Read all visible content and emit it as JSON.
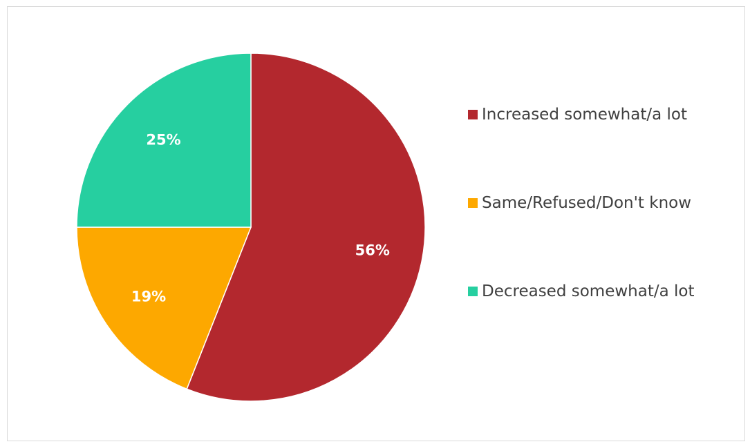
{
  "chart_data": {
    "type": "pie",
    "title": "",
    "slices": [
      {
        "label": "Increased somewhat/a lot",
        "value": 56,
        "value_label": "56%",
        "color": "#b3282e"
      },
      {
        "label": "Same/Refused/Don't know",
        "value": 19,
        "value_label": "19%",
        "color": "#fda800"
      },
      {
        "label": "Decreased somewhat/a lot",
        "value": 25,
        "value_label": "25%",
        "color": "#26cfa0"
      }
    ],
    "start_angle": "12 o'clock",
    "direction": "clockwise",
    "legend_placement": "right"
  }
}
